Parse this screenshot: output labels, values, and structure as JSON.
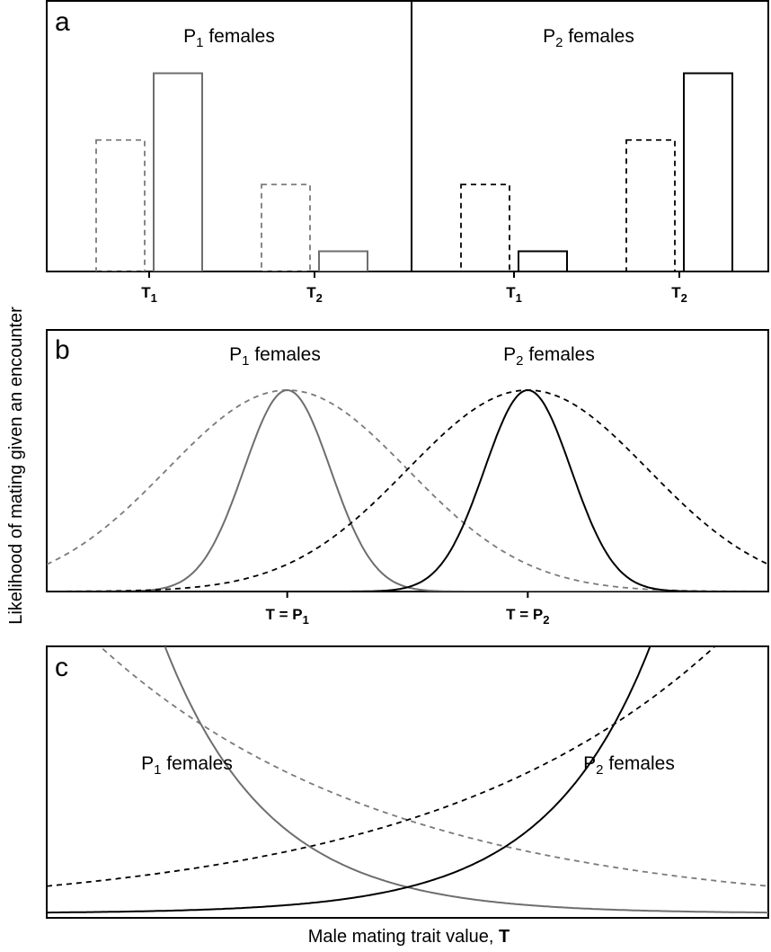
{
  "chart_data": [
    {
      "panel": "a",
      "type": "bar",
      "groups": [
        {
          "title_main": "P",
          "title_sub": "1",
          "title_rest": " females",
          "categories": [
            {
              "main": "T",
              "sub": "1"
            },
            {
              "main": "T",
              "sub": "2"
            }
          ],
          "series": [
            {
              "style": "dashed",
              "color": "#7a7a7a",
              "values": [
                0.65,
                0.43
              ]
            },
            {
              "style": "solid",
              "color": "#6e6e6e",
              "values": [
                0.98,
                0.1
              ]
            }
          ]
        },
        {
          "title_main": "P",
          "title_sub": "2",
          "title_rest": " females",
          "categories": [
            {
              "main": "T",
              "sub": "1"
            },
            {
              "main": "T",
              "sub": "2"
            }
          ],
          "series": [
            {
              "style": "dashed",
              "color": "#000000",
              "values": [
                0.43,
                0.65
              ]
            },
            {
              "style": "solid",
              "color": "#000000",
              "values": [
                0.1,
                0.98
              ]
            }
          ]
        }
      ],
      "ylim": [
        0,
        1
      ]
    },
    {
      "panel": "b",
      "type": "line",
      "xlim": [
        -1.5,
        1.5
      ],
      "ylim": [
        0,
        1
      ],
      "xticks": [
        {
          "x": -0.5,
          "main": "T = P",
          "sub": "1"
        },
        {
          "x": 0.5,
          "main": "T = P",
          "sub": "2"
        }
      ],
      "curve_labels": [
        {
          "main": "P",
          "sub": "1",
          "rest": " females"
        },
        {
          "main": "P",
          "sub": "2",
          "rest": " females"
        }
      ],
      "series": [
        {
          "shape": "gaussian",
          "center": -0.5,
          "sd": 0.5,
          "peak": 1.0,
          "style": "dashed",
          "color": "#7a7a7a"
        },
        {
          "shape": "gaussian",
          "center": -0.5,
          "sd": 0.18,
          "peak": 1.0,
          "style": "solid",
          "color": "#6e6e6e"
        },
        {
          "shape": "gaussian",
          "center": 0.5,
          "sd": 0.5,
          "peak": 1.0,
          "style": "dashed",
          "color": "#000000"
        },
        {
          "shape": "gaussian",
          "center": 0.5,
          "sd": 0.18,
          "peak": 1.0,
          "style": "solid",
          "color": "#000000"
        }
      ]
    },
    {
      "panel": "c",
      "type": "line",
      "xlim": [
        0,
        1
      ],
      "ylim": [
        0,
        1
      ],
      "curve_labels": [
        {
          "main": "P",
          "sub": "1",
          "rest": " females"
        },
        {
          "main": "P",
          "sub": "2",
          "rest": " females"
        }
      ],
      "series": [
        {
          "shape": "exponential",
          "y_at_xmin": 1.2,
          "y_at_xmax": 0.102,
          "style": "dashed",
          "color": "#7a7a7a"
        },
        {
          "shape": "exponential",
          "y_at_xmin": 0.102,
          "y_at_xmax": 1.2,
          "style": "dashed",
          "color": "#000000"
        },
        {
          "shape": "exponential",
          "y_at_xmin": 3.1,
          "y_at_xmax": 0.0031,
          "style": "solid",
          "color": "#6e6e6e"
        },
        {
          "shape": "exponential",
          "y_at_xmin": 0.0031,
          "y_at_xmax": 3.1,
          "style": "solid",
          "color": "#000000"
        }
      ]
    }
  ],
  "labels": {
    "panel_a": "a",
    "panel_b": "b",
    "panel_c": "c",
    "ylabel": "Likelihood of mating given an encounter",
    "xlabel_main": "Male mating trait value, ",
    "xlabel_bold": "T"
  }
}
